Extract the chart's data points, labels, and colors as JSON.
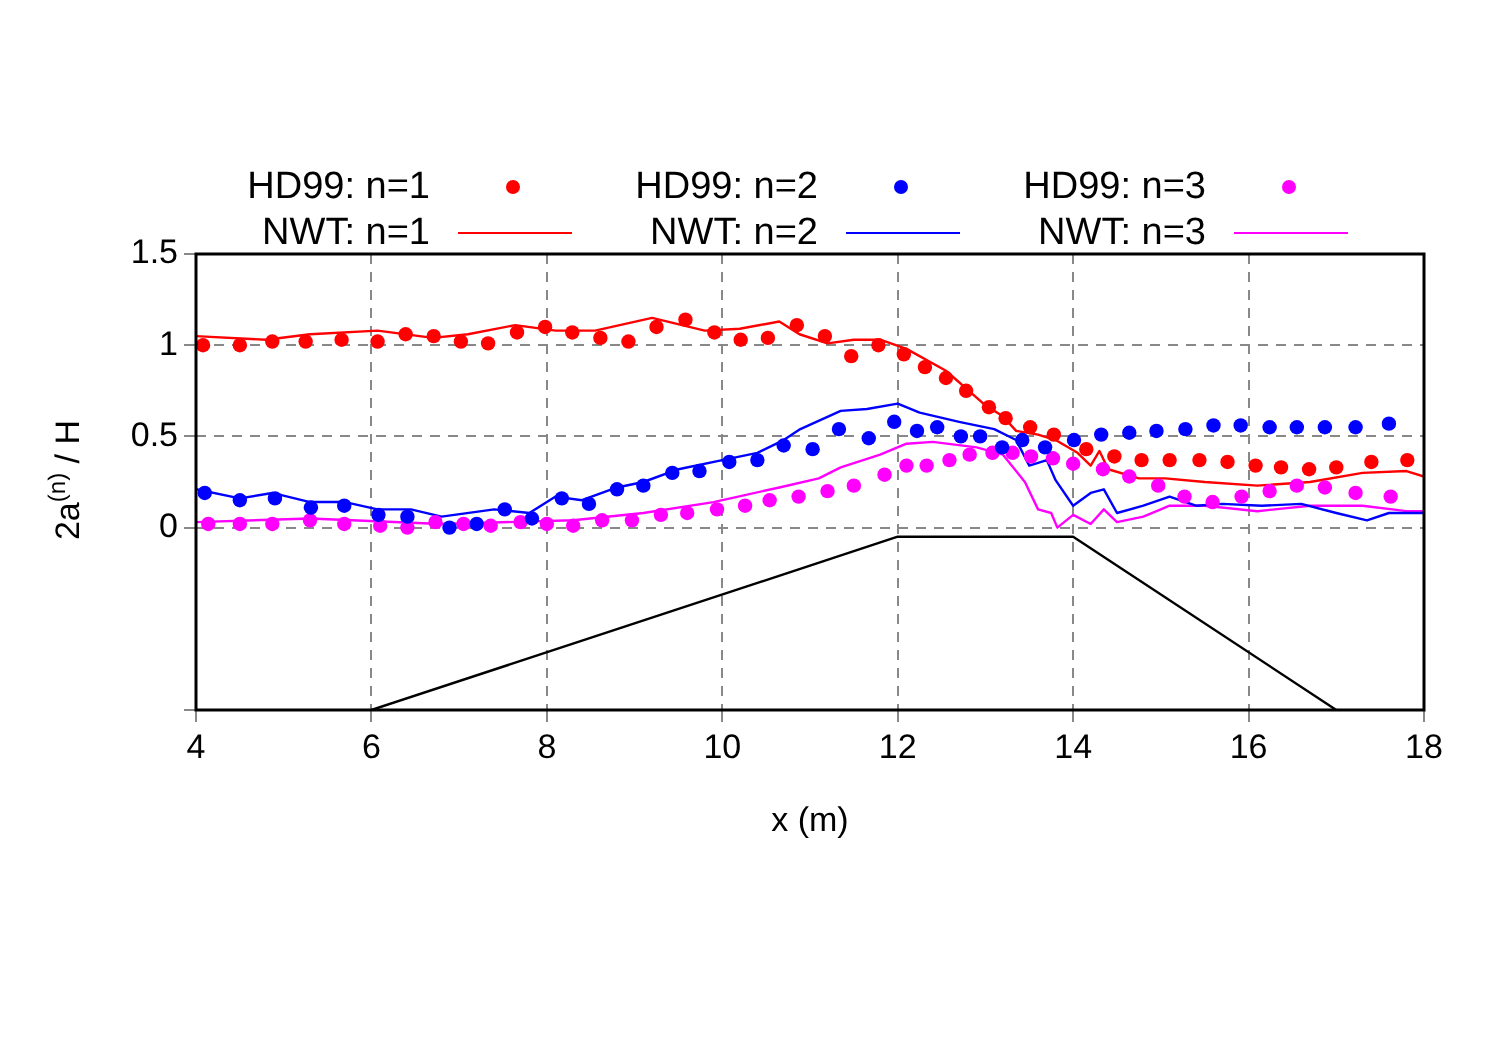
{
  "chart_data": {
    "type": "scatter",
    "xlabel": "x (m)",
    "ylabel": "2a$^{(n)}$ / H",
    "xlim": [
      4,
      18
    ],
    "xticks": [
      4,
      6,
      8,
      10,
      12,
      14,
      16,
      18
    ],
    "ylim": [
      -1,
      1.5
    ],
    "yticks": [
      {
        "value": -1,
        "label": null
      },
      0,
      0.5,
      1,
      1.5
    ],
    "grid": true,
    "legend": "top",
    "series": [
      {
        "name": "HD99: n=1",
        "type": "scatter",
        "marker": "circle",
        "color": "#ff0000",
        "x": [
          4.08,
          4.5,
          4.87,
          5.25,
          5.66,
          6.07,
          6.39,
          6.71,
          7.02,
          7.33,
          7.66,
          7.98,
          8.29,
          8.61,
          8.93,
          9.25,
          9.58,
          9.91,
          10.21,
          10.52,
          10.85,
          11.17,
          11.47,
          11.78,
          12.07,
          12.31,
          12.55,
          12.78,
          13.04,
          13.23,
          13.51,
          13.78,
          14.15,
          14.47,
          14.78,
          15.1,
          15.44,
          15.76,
          16.08,
          16.37,
          16.69,
          17.0,
          17.4,
          17.81
        ],
        "values": [
          1.0,
          1.0,
          1.02,
          1.02,
          1.03,
          1.02,
          1.06,
          1.05,
          1.02,
          1.01,
          1.07,
          1.1,
          1.07,
          1.04,
          1.02,
          1.1,
          1.14,
          1.07,
          1.03,
          1.04,
          1.11,
          1.05,
          0.94,
          1.0,
          0.95,
          0.88,
          0.82,
          0.75,
          0.66,
          0.6,
          0.55,
          0.51,
          0.43,
          0.39,
          0.37,
          0.37,
          0.37,
          0.36,
          0.34,
          0.33,
          0.32,
          0.33,
          0.36,
          0.37
        ]
      },
      {
        "name": "HD99: n=2",
        "type": "scatter",
        "marker": "circle",
        "color": "#0000ff",
        "x": [
          4.1,
          4.5,
          4.9,
          5.31,
          5.69,
          6.08,
          6.41,
          6.89,
          7.2,
          7.52,
          7.83,
          8.17,
          8.48,
          8.8,
          9.1,
          9.43,
          9.74,
          10.08,
          10.4,
          10.7,
          11.03,
          11.33,
          11.67,
          11.96,
          12.22,
          12.45,
          12.72,
          12.94,
          13.19,
          13.42,
          13.68,
          14.01,
          14.32,
          14.64,
          14.95,
          15.28,
          15.6,
          15.91,
          16.24,
          16.55,
          16.87,
          17.22,
          17.6
        ],
        "values": [
          0.19,
          0.15,
          0.16,
          0.11,
          0.12,
          0.07,
          0.06,
          0.0,
          0.02,
          0.1,
          0.05,
          0.16,
          0.13,
          0.21,
          0.23,
          0.3,
          0.31,
          0.36,
          0.37,
          0.45,
          0.43,
          0.54,
          0.49,
          0.58,
          0.53,
          0.55,
          0.5,
          0.5,
          0.44,
          0.48,
          0.44,
          0.48,
          0.51,
          0.52,
          0.53,
          0.54,
          0.56,
          0.56,
          0.55,
          0.55,
          0.55,
          0.55,
          0.57
        ]
      },
      {
        "name": "HD99: n=3",
        "type": "scatter",
        "marker": "circle",
        "color": "#ff00ff",
        "x": [
          4.14,
          4.5,
          4.87,
          5.3,
          5.69,
          6.1,
          6.41,
          6.73,
          7.05,
          7.36,
          7.7,
          8.0,
          8.3,
          8.63,
          8.97,
          9.3,
          9.6,
          9.94,
          10.26,
          10.54,
          10.87,
          11.2,
          11.5,
          11.85,
          12.1,
          12.33,
          12.59,
          12.82,
          13.08,
          13.31,
          13.52,
          13.77,
          14.0,
          14.34,
          14.64,
          14.97,
          15.27,
          15.59,
          15.92,
          16.24,
          16.55,
          16.87,
          17.22,
          17.62
        ],
        "values": [
          0.02,
          0.02,
          0.02,
          0.04,
          0.02,
          0.01,
          0.0,
          0.03,
          0.02,
          0.01,
          0.03,
          0.02,
          0.01,
          0.04,
          0.04,
          0.07,
          0.08,
          0.1,
          0.12,
          0.15,
          0.17,
          0.2,
          0.23,
          0.29,
          0.34,
          0.34,
          0.37,
          0.4,
          0.41,
          0.41,
          0.39,
          0.38,
          0.35,
          0.32,
          0.28,
          0.23,
          0.17,
          0.14,
          0.17,
          0.2,
          0.23,
          0.22,
          0.19,
          0.17
        ]
      },
      {
        "name": "NWT: n=1",
        "type": "line",
        "marker": "none",
        "color": "#ff0000",
        "x": [
          4.0,
          4.8,
          5.3,
          6.07,
          6.7,
          7.1,
          7.64,
          8.1,
          8.55,
          9.2,
          9.8,
          10.2,
          10.65,
          10.88,
          11.2,
          11.5,
          11.8,
          12.1,
          12.55,
          13.0,
          13.2,
          13.35,
          13.6,
          13.8,
          14.05,
          14.2,
          14.3,
          14.4,
          14.75,
          15.05,
          15.5,
          16.1,
          16.7,
          17.3,
          17.8,
          18.0
        ],
        "values": [
          1.05,
          1.03,
          1.06,
          1.08,
          1.04,
          1.06,
          1.11,
          1.08,
          1.08,
          1.15,
          1.08,
          1.09,
          1.13,
          1.06,
          1.01,
          1.03,
          1.03,
          0.98,
          0.86,
          0.67,
          0.61,
          0.53,
          0.51,
          0.48,
          0.41,
          0.34,
          0.42,
          0.32,
          0.27,
          0.27,
          0.25,
          0.23,
          0.25,
          0.3,
          0.31,
          0.28
        ]
      },
      {
        "name": "NWT: n=2",
        "type": "line",
        "marker": "none",
        "color": "#0000ff",
        "x": [
          4.0,
          4.5,
          4.87,
          5.3,
          5.7,
          6.07,
          6.45,
          6.8,
          7.4,
          7.8,
          8.1,
          8.4,
          8.8,
          9.1,
          9.5,
          10.0,
          10.4,
          10.7,
          10.89,
          11.35,
          11.65,
          12.0,
          12.25,
          12.7,
          13.1,
          13.35,
          13.5,
          13.7,
          13.8,
          14.0,
          14.2,
          14.35,
          14.5,
          14.8,
          15.1,
          15.4,
          15.7,
          16.15,
          16.6,
          17.0,
          17.35,
          17.6,
          18.0
        ],
        "values": [
          0.21,
          0.16,
          0.19,
          0.14,
          0.14,
          0.1,
          0.1,
          0.06,
          0.1,
          0.08,
          0.17,
          0.15,
          0.22,
          0.25,
          0.32,
          0.37,
          0.41,
          0.48,
          0.54,
          0.64,
          0.65,
          0.68,
          0.63,
          0.58,
          0.54,
          0.48,
          0.34,
          0.37,
          0.26,
          0.12,
          0.19,
          0.21,
          0.08,
          0.12,
          0.17,
          0.12,
          0.13,
          0.12,
          0.13,
          0.08,
          0.04,
          0.08,
          0.08
        ]
      },
      {
        "name": "NWT: n=3",
        "type": "line",
        "marker": "none",
        "color": "#ff00ff",
        "x": [
          4.0,
          5.3,
          6.8,
          8.3,
          9.1,
          9.9,
          10.65,
          11.1,
          11.35,
          11.8,
          12.1,
          12.4,
          12.9,
          13.2,
          13.45,
          13.6,
          13.75,
          13.82,
          14.0,
          14.2,
          14.35,
          14.5,
          14.8,
          15.1,
          15.5,
          16.1,
          16.7,
          17.3,
          17.8,
          18.0
        ],
        "values": [
          0.03,
          0.05,
          0.02,
          0.04,
          0.08,
          0.14,
          0.22,
          0.27,
          0.33,
          0.4,
          0.46,
          0.47,
          0.44,
          0.4,
          0.25,
          0.1,
          0.08,
          0.0,
          0.07,
          0.02,
          0.1,
          0.03,
          0.06,
          0.12,
          0.12,
          0.09,
          0.12,
          0.12,
          0.09,
          0.09
        ]
      },
      {
        "type": "line",
        "marker": "none",
        "color": "#000000",
        "x": [
          6,
          12,
          14,
          17
        ],
        "values": [
          -1,
          -0.05,
          -0.05,
          -1
        ]
      }
    ]
  }
}
